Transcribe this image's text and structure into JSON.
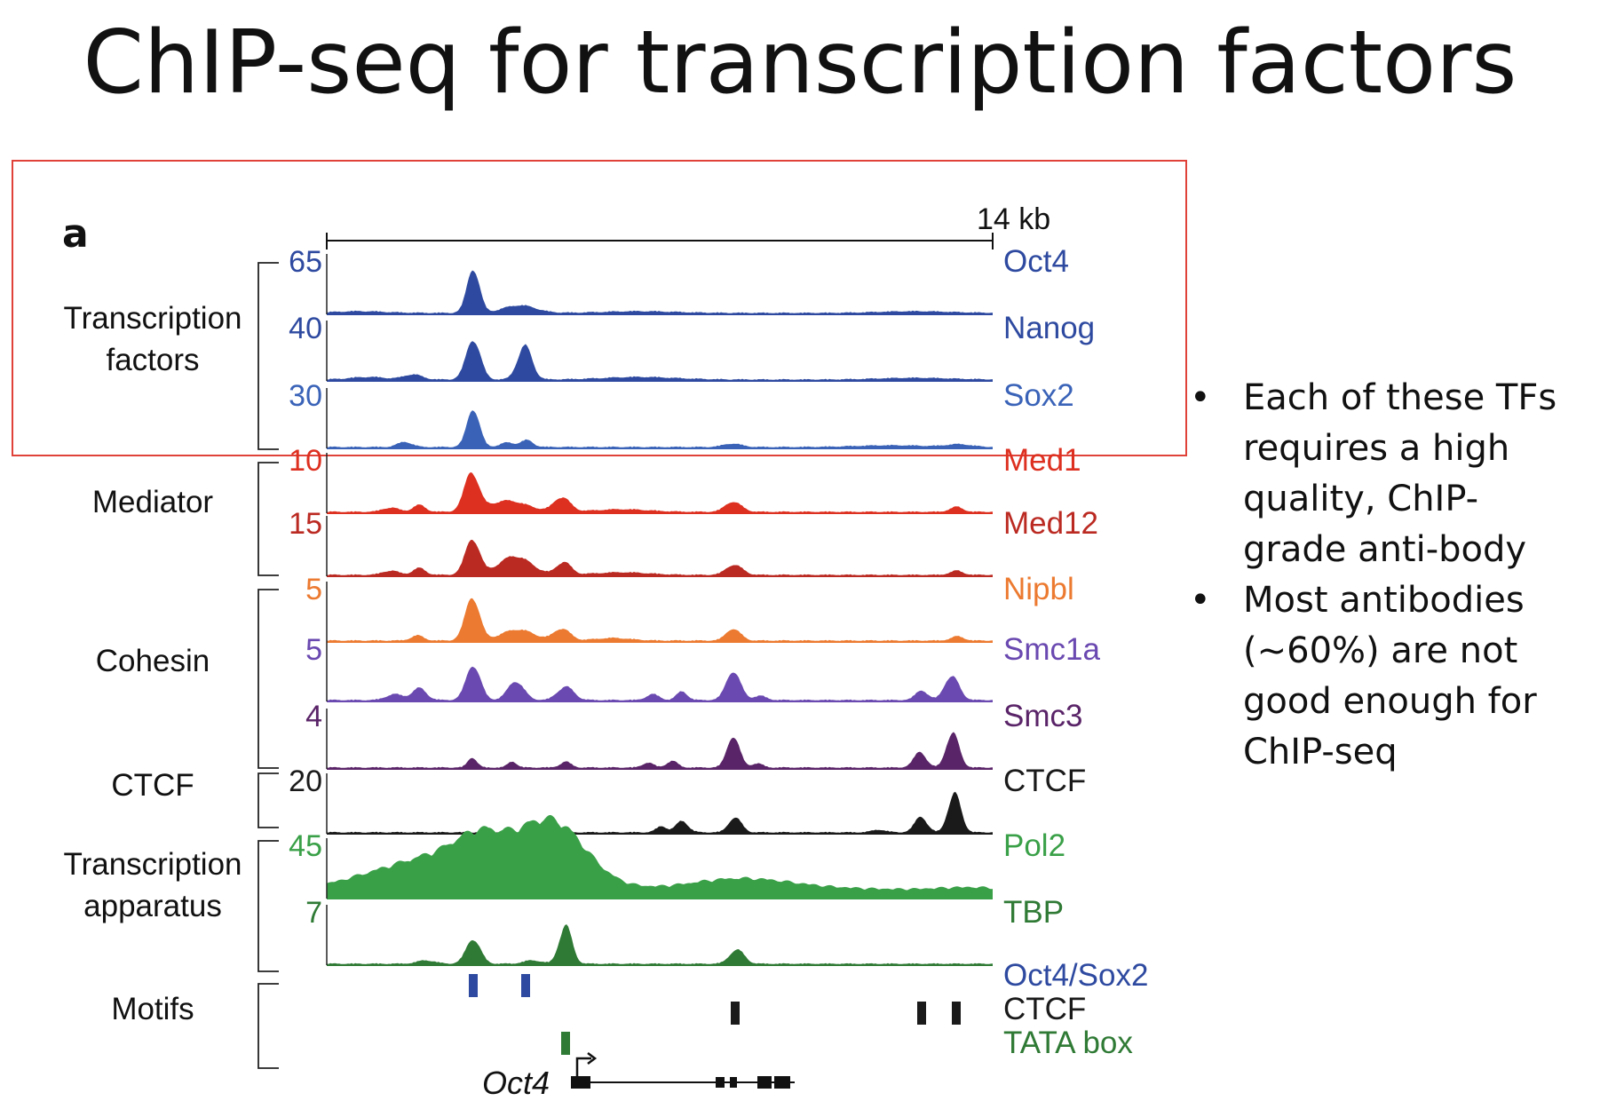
{
  "title": "ChIP-seq for transcription factors",
  "panel_label": "a",
  "scale_label": "14 kb",
  "colors": {
    "highlight_box": "#e0423a",
    "tf_blue": "#2e4aa0",
    "sox2_blue": "#3a63b8",
    "med_red": "#dd3020",
    "med12_red": "#bb2a22",
    "nipbl_orange": "#ec7a30",
    "smc1a_purple": "#6a49b0",
    "smc3_purple": "#5a2468",
    "ctcf_black": "#1a1a1a",
    "pol2_green": "#3aa048",
    "tbp_green": "#2f7a35"
  },
  "groups": [
    {
      "label": "Transcription factors",
      "lines": [
        "Transcription",
        "factors"
      ]
    },
    {
      "label": "Mediator",
      "lines": [
        "Mediator"
      ]
    },
    {
      "label": "Cohesin",
      "lines": [
        "Cohesin"
      ]
    },
    {
      "label": "CTCF",
      "lines": [
        "CTCF"
      ]
    },
    {
      "label": "Transcription apparatus",
      "lines": [
        "Transcription",
        "apparatus"
      ]
    },
    {
      "label": "Motifs",
      "lines": [
        "Motifs"
      ]
    }
  ],
  "tracks": [
    {
      "name": "Oct4",
      "max": "65",
      "color": "#2e4aa0"
    },
    {
      "name": "Nanog",
      "max": "40",
      "color": "#2e4aa0"
    },
    {
      "name": "Sox2",
      "max": "30",
      "color": "#3a63b8"
    },
    {
      "name": "Med1",
      "max": "10",
      "color": "#dd3020"
    },
    {
      "name": "Med12",
      "max": "15",
      "color": "#bb2a22"
    },
    {
      "name": "Nipbl",
      "max": "5",
      "color": "#ec7a30"
    },
    {
      "name": "Smc1a",
      "max": "5",
      "color": "#6a49b0"
    },
    {
      "name": "Smc3",
      "max": "4",
      "color": "#5a2468"
    },
    {
      "name": "CTCF",
      "max": "20",
      "color": "#1a1a1a"
    },
    {
      "name": "Pol2",
      "max": "45",
      "color": "#3aa048"
    },
    {
      "name": "TBP",
      "max": "7",
      "color": "#2f7a35"
    }
  ],
  "motifs": [
    {
      "name": "Oct4/Sox2",
      "color": "#2e4aa0"
    },
    {
      "name": "CTCF",
      "color": "#1a1a1a"
    },
    {
      "name": "TATA box",
      "color": "#2f7a35"
    }
  ],
  "gene_label": "Oct4",
  "bullets": [
    "Each of these TFs requires a high quality, ChIP-grade anti-body",
    "Most antibodies (~60%) are not good enough for ChIP-seq"
  ]
}
